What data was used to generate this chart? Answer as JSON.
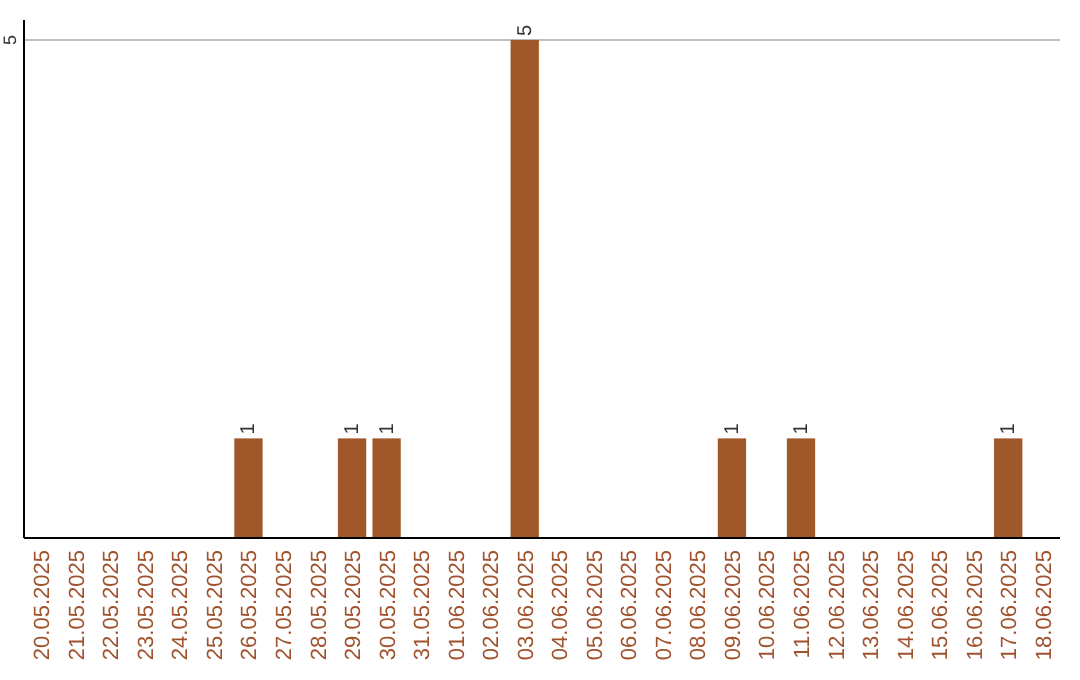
{
  "chart_data": {
    "type": "bar",
    "categories": [
      "20.05.2025",
      "21.05.2025",
      "22.05.2025",
      "23.05.2025",
      "24.05.2025",
      "25.05.2025",
      "26.05.2025",
      "27.05.2025",
      "28.05.2025",
      "29.05.2025",
      "30.05.2025",
      "31.05.2025",
      "01.06.2025",
      "02.06.2025",
      "03.06.2025",
      "04.06.2025",
      "05.06.2025",
      "06.06.2025",
      "07.06.2025",
      "08.06.2025",
      "09.06.2025",
      "10.06.2025",
      "11.06.2025",
      "12.06.2025",
      "13.06.2025",
      "14.06.2025",
      "15.06.2025",
      "16.06.2025",
      "17.06.2025",
      "18.06.2025"
    ],
    "values": [
      0,
      0,
      0,
      0,
      0,
      0,
      1,
      0,
      0,
      1,
      1,
      0,
      0,
      0,
      5,
      0,
      0,
      0,
      0,
      0,
      1,
      0,
      1,
      0,
      0,
      0,
      0,
      0,
      1,
      0
    ],
    "value_labels": [
      null,
      null,
      null,
      null,
      null,
      null,
      "1",
      null,
      null,
      "1",
      "1",
      null,
      null,
      null,
      "5",
      null,
      null,
      null,
      null,
      null,
      "1",
      null,
      "1",
      null,
      null,
      null,
      null,
      null,
      "1",
      null
    ],
    "color": "#a0582a",
    "ylim": [
      0,
      5.2
    ],
    "yticks": [
      5
    ],
    "grid": "y"
  }
}
